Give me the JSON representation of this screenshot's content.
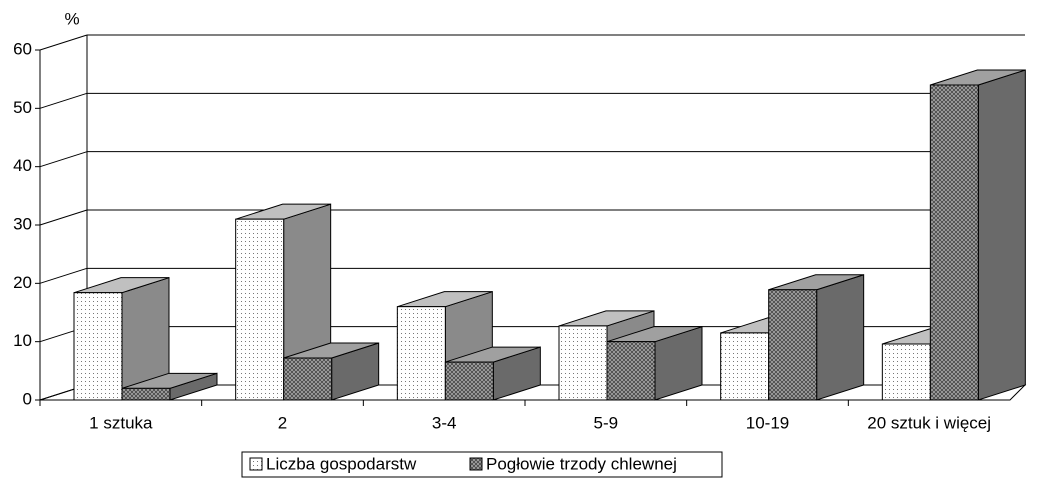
{
  "chart_data": {
    "type": "bar3d",
    "y_label": "%",
    "categories": [
      "1 sztuka",
      "2",
      "3-4",
      "5-9",
      "10-19",
      "20 sztuk i więcej"
    ],
    "series": [
      {
        "name": "Liczba gospodarstw",
        "color": "#ffffff",
        "values": [
          18.4,
          31,
          16,
          12.7,
          11.5,
          9.6
        ]
      },
      {
        "name": "Pogłowie trzody chlewnej",
        "color": "#a8a8a8",
        "values": [
          2,
          7.2,
          6.5,
          10,
          18.9,
          54
        ]
      }
    ],
    "ylim": [
      0,
      60
    ],
    "yticks": [
      0,
      10,
      20,
      30,
      40,
      50,
      60
    ],
    "grid": true,
    "legend": "bottom"
  }
}
